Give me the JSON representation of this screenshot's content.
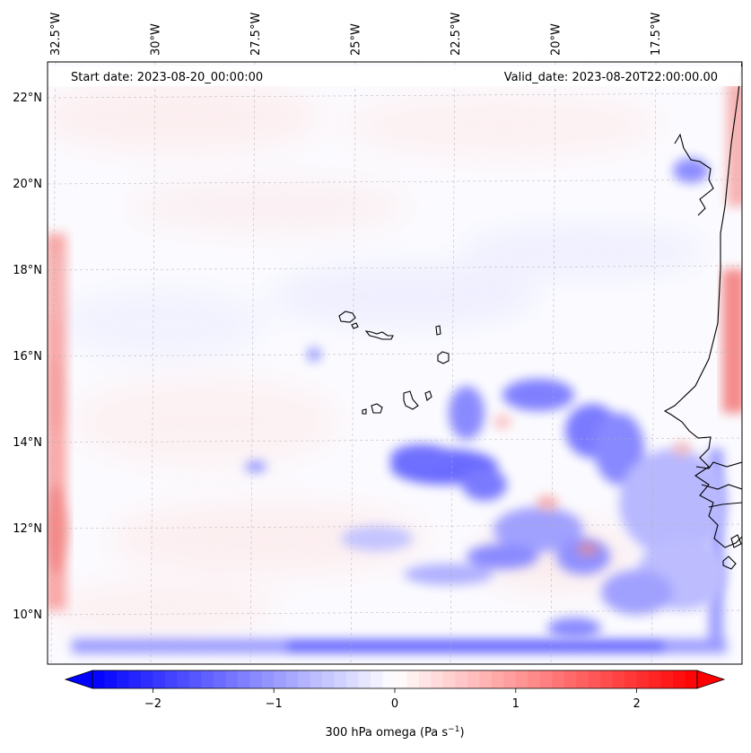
{
  "header": {
    "start_date": "Start date: 2023-08-20_00:00:00",
    "valid_date": "Valid_date: 2023-08-20T22:00:00.00"
  },
  "axes": {
    "lon_ticks": [
      {
        "value": -32.5,
        "label": "32.5°W"
      },
      {
        "value": -30.0,
        "label": "30°W"
      },
      {
        "value": -27.5,
        "label": "27.5°W"
      },
      {
        "value": -25.0,
        "label": "25°W"
      },
      {
        "value": -22.5,
        "label": "22.5°W"
      },
      {
        "value": -20.0,
        "label": "20°W"
      },
      {
        "value": -17.5,
        "label": "17.5°W"
      }
    ],
    "lat_ticks": [
      {
        "value": 22,
        "label": "22°N"
      },
      {
        "value": 20,
        "label": "20°N"
      },
      {
        "value": 18,
        "label": "18°N"
      },
      {
        "value": 16,
        "label": "16°N"
      },
      {
        "value": 14,
        "label": "14°N"
      },
      {
        "value": 12,
        "label": "12°N"
      },
      {
        "value": 10,
        "label": "10°N"
      }
    ],
    "gridlines": true
  },
  "colorbar": {
    "ticks": [
      "−2",
      "−1",
      "0",
      "1",
      "2"
    ],
    "tick_values": [
      -2,
      -1,
      0,
      1,
      2
    ],
    "range": [
      -2.5,
      2.5
    ],
    "colormap": "bwr",
    "min_color": "#0000ff",
    "mid_color": "#ffffff",
    "max_color": "#ff0000",
    "label_main": "300 hPa omega (Pa s",
    "label_sup": "−1",
    "label_close": ")"
  },
  "map": {
    "field": "300 hPa omega",
    "coastline_color": "#000000"
  }
}
